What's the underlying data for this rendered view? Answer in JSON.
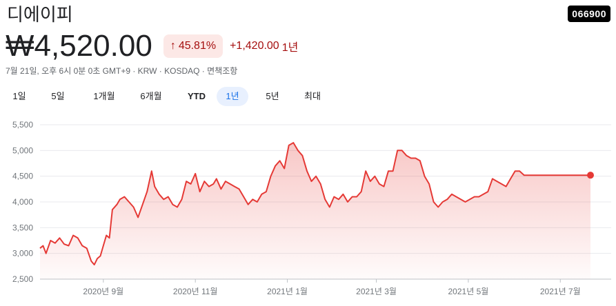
{
  "header": {
    "name": "디에이피",
    "ticker": "066900",
    "price": "₩4,520.00",
    "change_pct": "45.81%",
    "change_abs": "+1,420.00",
    "change_period": "1년",
    "meta": "7월 21일, 오후 6시 0분 0초 GMT+9 · KRW · KOSDAQ · 면책조항"
  },
  "icons": {
    "up_arrow": "arrow-up-icon"
  },
  "colors": {
    "line": "#e53935",
    "badge_bg": "#fce8e6",
    "badge_text": "#a50e0e",
    "active_tab": "#1a73e8"
  },
  "tabs": [
    {
      "label": "1일",
      "active": false
    },
    {
      "label": "5일",
      "active": false
    },
    {
      "label": "1개월",
      "active": false
    },
    {
      "label": "6개월",
      "active": false
    },
    {
      "label": "YTD",
      "active": false
    },
    {
      "label": "1년",
      "active": true
    },
    {
      "label": "5년",
      "active": false
    },
    {
      "label": "최대",
      "active": false
    }
  ],
  "chart_data": {
    "type": "area",
    "title": "",
    "xlabel": "",
    "ylabel": "",
    "ylim": [
      2500,
      5500
    ],
    "y_ticks": [
      "5,500",
      "5,000",
      "4,500",
      "4,000",
      "3,500",
      "3,000",
      "2,500"
    ],
    "x_ticks": [
      "2020년 9월",
      "2020년 11월",
      "2021년 1월",
      "2021년 3월",
      "2021년 5월",
      "2021년 7월"
    ],
    "x_tick_dates": [
      "2020-09-01",
      "2020-11-01",
      "2021-01-01",
      "2021-03-01",
      "2021-05-01",
      "2021-07-01"
    ],
    "x_range": [
      "2020-07-21",
      "2021-07-21"
    ],
    "grid": true,
    "series": [
      {
        "x": [
          "2020-07-21",
          "2020-07-23",
          "2020-07-25",
          "2020-07-28",
          "2020-07-31",
          "2020-08-03",
          "2020-08-06",
          "2020-08-09",
          "2020-08-12",
          "2020-08-15",
          "2020-08-18",
          "2020-08-21",
          "2020-08-24",
          "2020-08-26",
          "2020-08-28",
          "2020-08-30",
          "2020-09-01",
          "2020-09-03",
          "2020-09-05",
          "2020-09-07",
          "2020-09-10",
          "2020-09-12",
          "2020-09-15",
          "2020-09-18",
          "2020-09-21",
          "2020-09-24",
          "2020-09-27",
          "2020-09-30",
          "2020-10-03",
          "2020-10-05",
          "2020-10-08",
          "2020-10-11",
          "2020-10-14",
          "2020-10-17",
          "2020-10-20",
          "2020-10-23",
          "2020-10-26",
          "2020-10-29",
          "2020-11-01",
          "2020-11-04",
          "2020-11-07",
          "2020-11-10",
          "2020-11-13",
          "2020-11-15",
          "2020-11-18",
          "2020-11-21",
          "2020-11-24",
          "2020-11-27",
          "2020-11-30",
          "2020-12-03",
          "2020-12-06",
          "2020-12-09",
          "2020-12-12",
          "2020-12-15",
          "2020-12-18",
          "2020-12-21",
          "2020-12-24",
          "2020-12-27",
          "2020-12-30",
          "2021-01-02",
          "2021-01-05",
          "2021-01-08",
          "2021-01-11",
          "2021-01-14",
          "2021-01-17",
          "2021-01-20",
          "2021-01-23",
          "2021-01-26",
          "2021-01-29",
          "2021-02-01",
          "2021-02-04",
          "2021-02-07",
          "2021-02-10",
          "2021-02-13",
          "2021-02-16",
          "2021-02-19",
          "2021-02-22",
          "2021-02-25",
          "2021-02-28",
          "2021-03-03",
          "2021-03-06",
          "2021-03-09",
          "2021-03-12",
          "2021-03-15",
          "2021-03-18",
          "2021-03-21",
          "2021-03-24",
          "2021-03-27",
          "2021-03-30",
          "2021-04-02",
          "2021-04-05",
          "2021-04-08",
          "2021-04-11",
          "2021-04-14",
          "2021-04-17",
          "2021-04-20",
          "2021-04-23",
          "2021-04-26",
          "2021-04-29",
          "2021-05-02",
          "2021-05-05",
          "2021-05-08",
          "2021-05-11",
          "2021-05-14",
          "2021-05-17",
          "2021-05-20",
          "2021-05-23",
          "2021-05-26",
          "2021-05-29",
          "2021-06-01",
          "2021-06-04",
          "2021-06-07",
          "2021-06-10",
          "2021-06-13",
          "2021-06-16",
          "2021-06-19",
          "2021-06-22",
          "2021-06-25",
          "2021-06-28",
          "2021-07-01",
          "2021-07-04",
          "2021-07-07",
          "2021-07-10",
          "2021-07-13",
          "2021-07-16",
          "2021-07-19",
          "2021-07-21"
        ],
        "values": [
          3100,
          3150,
          3000,
          3250,
          3200,
          3300,
          3180,
          3150,
          3350,
          3300,
          3150,
          3100,
          2850,
          2780,
          2900,
          2950,
          3150,
          3350,
          3300,
          3850,
          3950,
          4050,
          4100,
          4000,
          3900,
          3700,
          3950,
          4200,
          4600,
          4300,
          4150,
          4050,
          4100,
          3950,
          3900,
          4050,
          4400,
          4350,
          4550,
          4200,
          4400,
          4300,
          4350,
          4450,
          4250,
          4400,
          4350,
          4300,
          4250,
          4100,
          3950,
          4050,
          4000,
          4150,
          4200,
          4500,
          4700,
          4800,
          4650,
          5100,
          5150,
          5000,
          4900,
          4600,
          4400,
          4500,
          4350,
          4050,
          3900,
          4100,
          4050,
          4150,
          4000,
          4100,
          4100,
          4200,
          4600,
          4400,
          4500,
          4350,
          4300,
          4600,
          4600,
          5000,
          5000,
          4900,
          4850,
          4850,
          4800,
          4500,
          4350,
          4000,
          3900,
          4000,
          4050,
          4150,
          4100,
          4050,
          4000,
          4050,
          4100,
          4100,
          4150,
          4200,
          4450,
          4400,
          4350,
          4300,
          4450,
          4600,
          4600,
          4520,
          4520,
          4520,
          4520,
          4520,
          4520,
          4520,
          4520,
          4520,
          4520,
          4520,
          4520,
          4520,
          4520,
          4520,
          4520
        ]
      }
    ]
  }
}
